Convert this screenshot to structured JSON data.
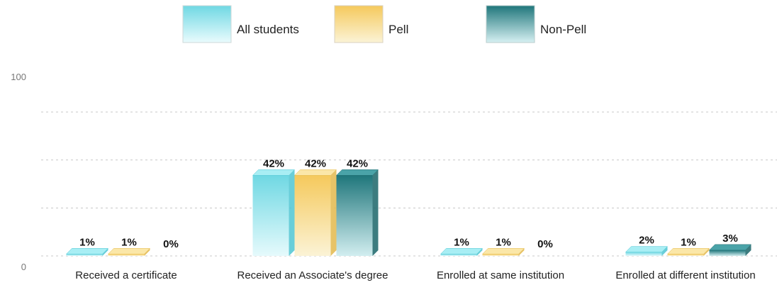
{
  "chart_data": {
    "type": "bar",
    "categories": [
      "Received a certificate",
      "Received an Associate's degree",
      "Enrolled at same institution",
      "Enrolled at different institution"
    ],
    "series": [
      {
        "name": "All students",
        "values": [
          1,
          42,
          1,
          2
        ],
        "labels": [
          "1%",
          "42%",
          "1%",
          "2%"
        ],
        "color": "#7fe0ea"
      },
      {
        "name": "Pell",
        "values": [
          1,
          42,
          1,
          1
        ],
        "labels": [
          "1%",
          "42%",
          "1%",
          "1%"
        ],
        "color": "#f7d98a"
      },
      {
        "name": "Non-Pell",
        "values": [
          0,
          42,
          0,
          3
        ],
        "labels": [
          "0%",
          "42%",
          "0%",
          "3%"
        ],
        "color": "#2f8a8f"
      }
    ],
    "ylim": [
      0,
      100
    ],
    "yticks": [
      "0",
      "100"
    ],
    "grid": true,
    "legend": "top-center"
  }
}
